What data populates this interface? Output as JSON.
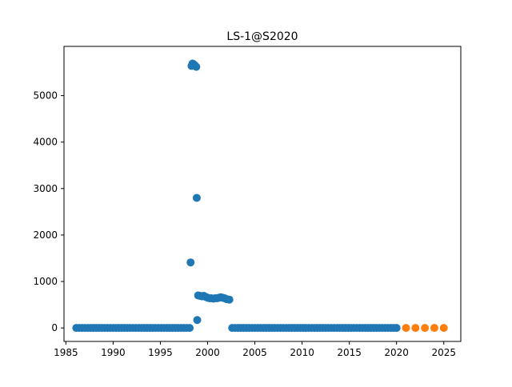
{
  "chart_data": {
    "type": "scatter",
    "title": "LS-1@S2020",
    "xlabel": "",
    "ylabel": "",
    "xlim": [
      1984.8,
      2026.8
    ],
    "ylim": [
      -290,
      6060
    ],
    "xticks": [
      1985,
      1990,
      1995,
      2000,
      2005,
      2010,
      2015,
      2020,
      2025
    ],
    "yticks": [
      0,
      1000,
      2000,
      3000,
      4000,
      5000
    ],
    "grid": false,
    "colors": {
      "history": "#1f77b4",
      "forecast": "#ff7f0e"
    },
    "series": [
      {
        "style": "history",
        "points": [
          [
            1986.1,
            0
          ],
          [
            1986.4,
            0
          ],
          [
            1986.7,
            0
          ],
          [
            1987.0,
            0
          ],
          [
            1987.3,
            0
          ],
          [
            1987.6,
            0
          ],
          [
            1987.9,
            0
          ],
          [
            1988.2,
            0
          ],
          [
            1988.5,
            0
          ],
          [
            1988.8,
            0
          ],
          [
            1989.1,
            0
          ],
          [
            1989.4,
            0
          ],
          [
            1989.7,
            0
          ],
          [
            1990.0,
            0
          ],
          [
            1990.3,
            0
          ],
          [
            1990.6,
            0
          ],
          [
            1990.9,
            0
          ],
          [
            1991.2,
            0
          ],
          [
            1991.5,
            0
          ],
          [
            1991.8,
            0
          ],
          [
            1992.1,
            0
          ],
          [
            1992.4,
            0
          ],
          [
            1992.7,
            0
          ],
          [
            1993.0,
            0
          ],
          [
            1993.3,
            0
          ],
          [
            1993.6,
            0
          ],
          [
            1993.9,
            0
          ],
          [
            1994.2,
            0
          ],
          [
            1994.5,
            0
          ],
          [
            1994.8,
            0
          ],
          [
            1995.1,
            0
          ],
          [
            1995.4,
            0
          ],
          [
            1995.7,
            0
          ],
          [
            1996.0,
            0
          ],
          [
            1996.3,
            0
          ],
          [
            1996.6,
            0
          ],
          [
            1996.9,
            0
          ],
          [
            1997.2,
            0
          ],
          [
            1997.5,
            0
          ],
          [
            1997.8,
            0
          ],
          [
            1998.1,
            0
          ],
          [
            1998.2,
            1410
          ],
          [
            1998.3,
            5640
          ],
          [
            1998.4,
            5690
          ],
          [
            1998.5,
            5680
          ],
          [
            1998.6,
            5660
          ],
          [
            1998.7,
            5640
          ],
          [
            1998.8,
            5620
          ],
          [
            1998.85,
            2800
          ],
          [
            1998.9,
            170
          ],
          [
            1999.0,
            700
          ],
          [
            1999.2,
            690
          ],
          [
            1999.4,
            680
          ],
          [
            1999.6,
            690
          ],
          [
            1999.8,
            670
          ],
          [
            2000.0,
            650
          ],
          [
            2000.2,
            640
          ],
          [
            2000.4,
            640
          ],
          [
            2000.6,
            630
          ],
          [
            2000.8,
            640
          ],
          [
            2001.0,
            640
          ],
          [
            2001.2,
            650
          ],
          [
            2001.4,
            660
          ],
          [
            2001.6,
            650
          ],
          [
            2001.8,
            640
          ],
          [
            2002.0,
            620
          ],
          [
            2002.3,
            610
          ],
          [
            2002.6,
            0
          ],
          [
            2002.9,
            0
          ],
          [
            2003.2,
            0
          ],
          [
            2003.5,
            0
          ],
          [
            2003.8,
            0
          ],
          [
            2004.1,
            0
          ],
          [
            2004.4,
            0
          ],
          [
            2004.7,
            0
          ],
          [
            2005.0,
            0
          ],
          [
            2005.3,
            0
          ],
          [
            2005.6,
            0
          ],
          [
            2005.9,
            0
          ],
          [
            2006.2,
            0
          ],
          [
            2006.5,
            0
          ],
          [
            2006.8,
            0
          ],
          [
            2007.1,
            0
          ],
          [
            2007.4,
            0
          ],
          [
            2007.7,
            0
          ],
          [
            2008.0,
            0
          ],
          [
            2008.3,
            0
          ],
          [
            2008.6,
            0
          ],
          [
            2008.9,
            0
          ],
          [
            2009.2,
            0
          ],
          [
            2009.5,
            0
          ],
          [
            2009.8,
            0
          ],
          [
            2010.1,
            0
          ],
          [
            2010.4,
            0
          ],
          [
            2010.7,
            0
          ],
          [
            2011.0,
            0
          ],
          [
            2011.3,
            0
          ],
          [
            2011.6,
            0
          ],
          [
            2011.9,
            0
          ],
          [
            2012.2,
            0
          ],
          [
            2012.5,
            0
          ],
          [
            2012.8,
            0
          ],
          [
            2013.1,
            0
          ],
          [
            2013.4,
            0
          ],
          [
            2013.7,
            0
          ],
          [
            2014.0,
            0
          ],
          [
            2014.3,
            0
          ],
          [
            2014.6,
            0
          ],
          [
            2014.9,
            0
          ],
          [
            2015.2,
            0
          ],
          [
            2015.5,
            0
          ],
          [
            2015.8,
            0
          ],
          [
            2016.1,
            0
          ],
          [
            2016.4,
            0
          ],
          [
            2016.7,
            0
          ],
          [
            2017.0,
            0
          ],
          [
            2017.3,
            0
          ],
          [
            2017.6,
            0
          ],
          [
            2017.9,
            0
          ],
          [
            2018.2,
            0
          ],
          [
            2018.5,
            0
          ],
          [
            2018.8,
            0
          ],
          [
            2019.1,
            0
          ],
          [
            2019.4,
            0
          ],
          [
            2019.7,
            0
          ],
          [
            2020.0,
            0
          ]
        ]
      },
      {
        "style": "forecast",
        "points": [
          [
            2021,
            0
          ],
          [
            2022,
            0
          ],
          [
            2023,
            0
          ],
          [
            2024,
            0
          ],
          [
            2025,
            0
          ]
        ]
      }
    ]
  }
}
